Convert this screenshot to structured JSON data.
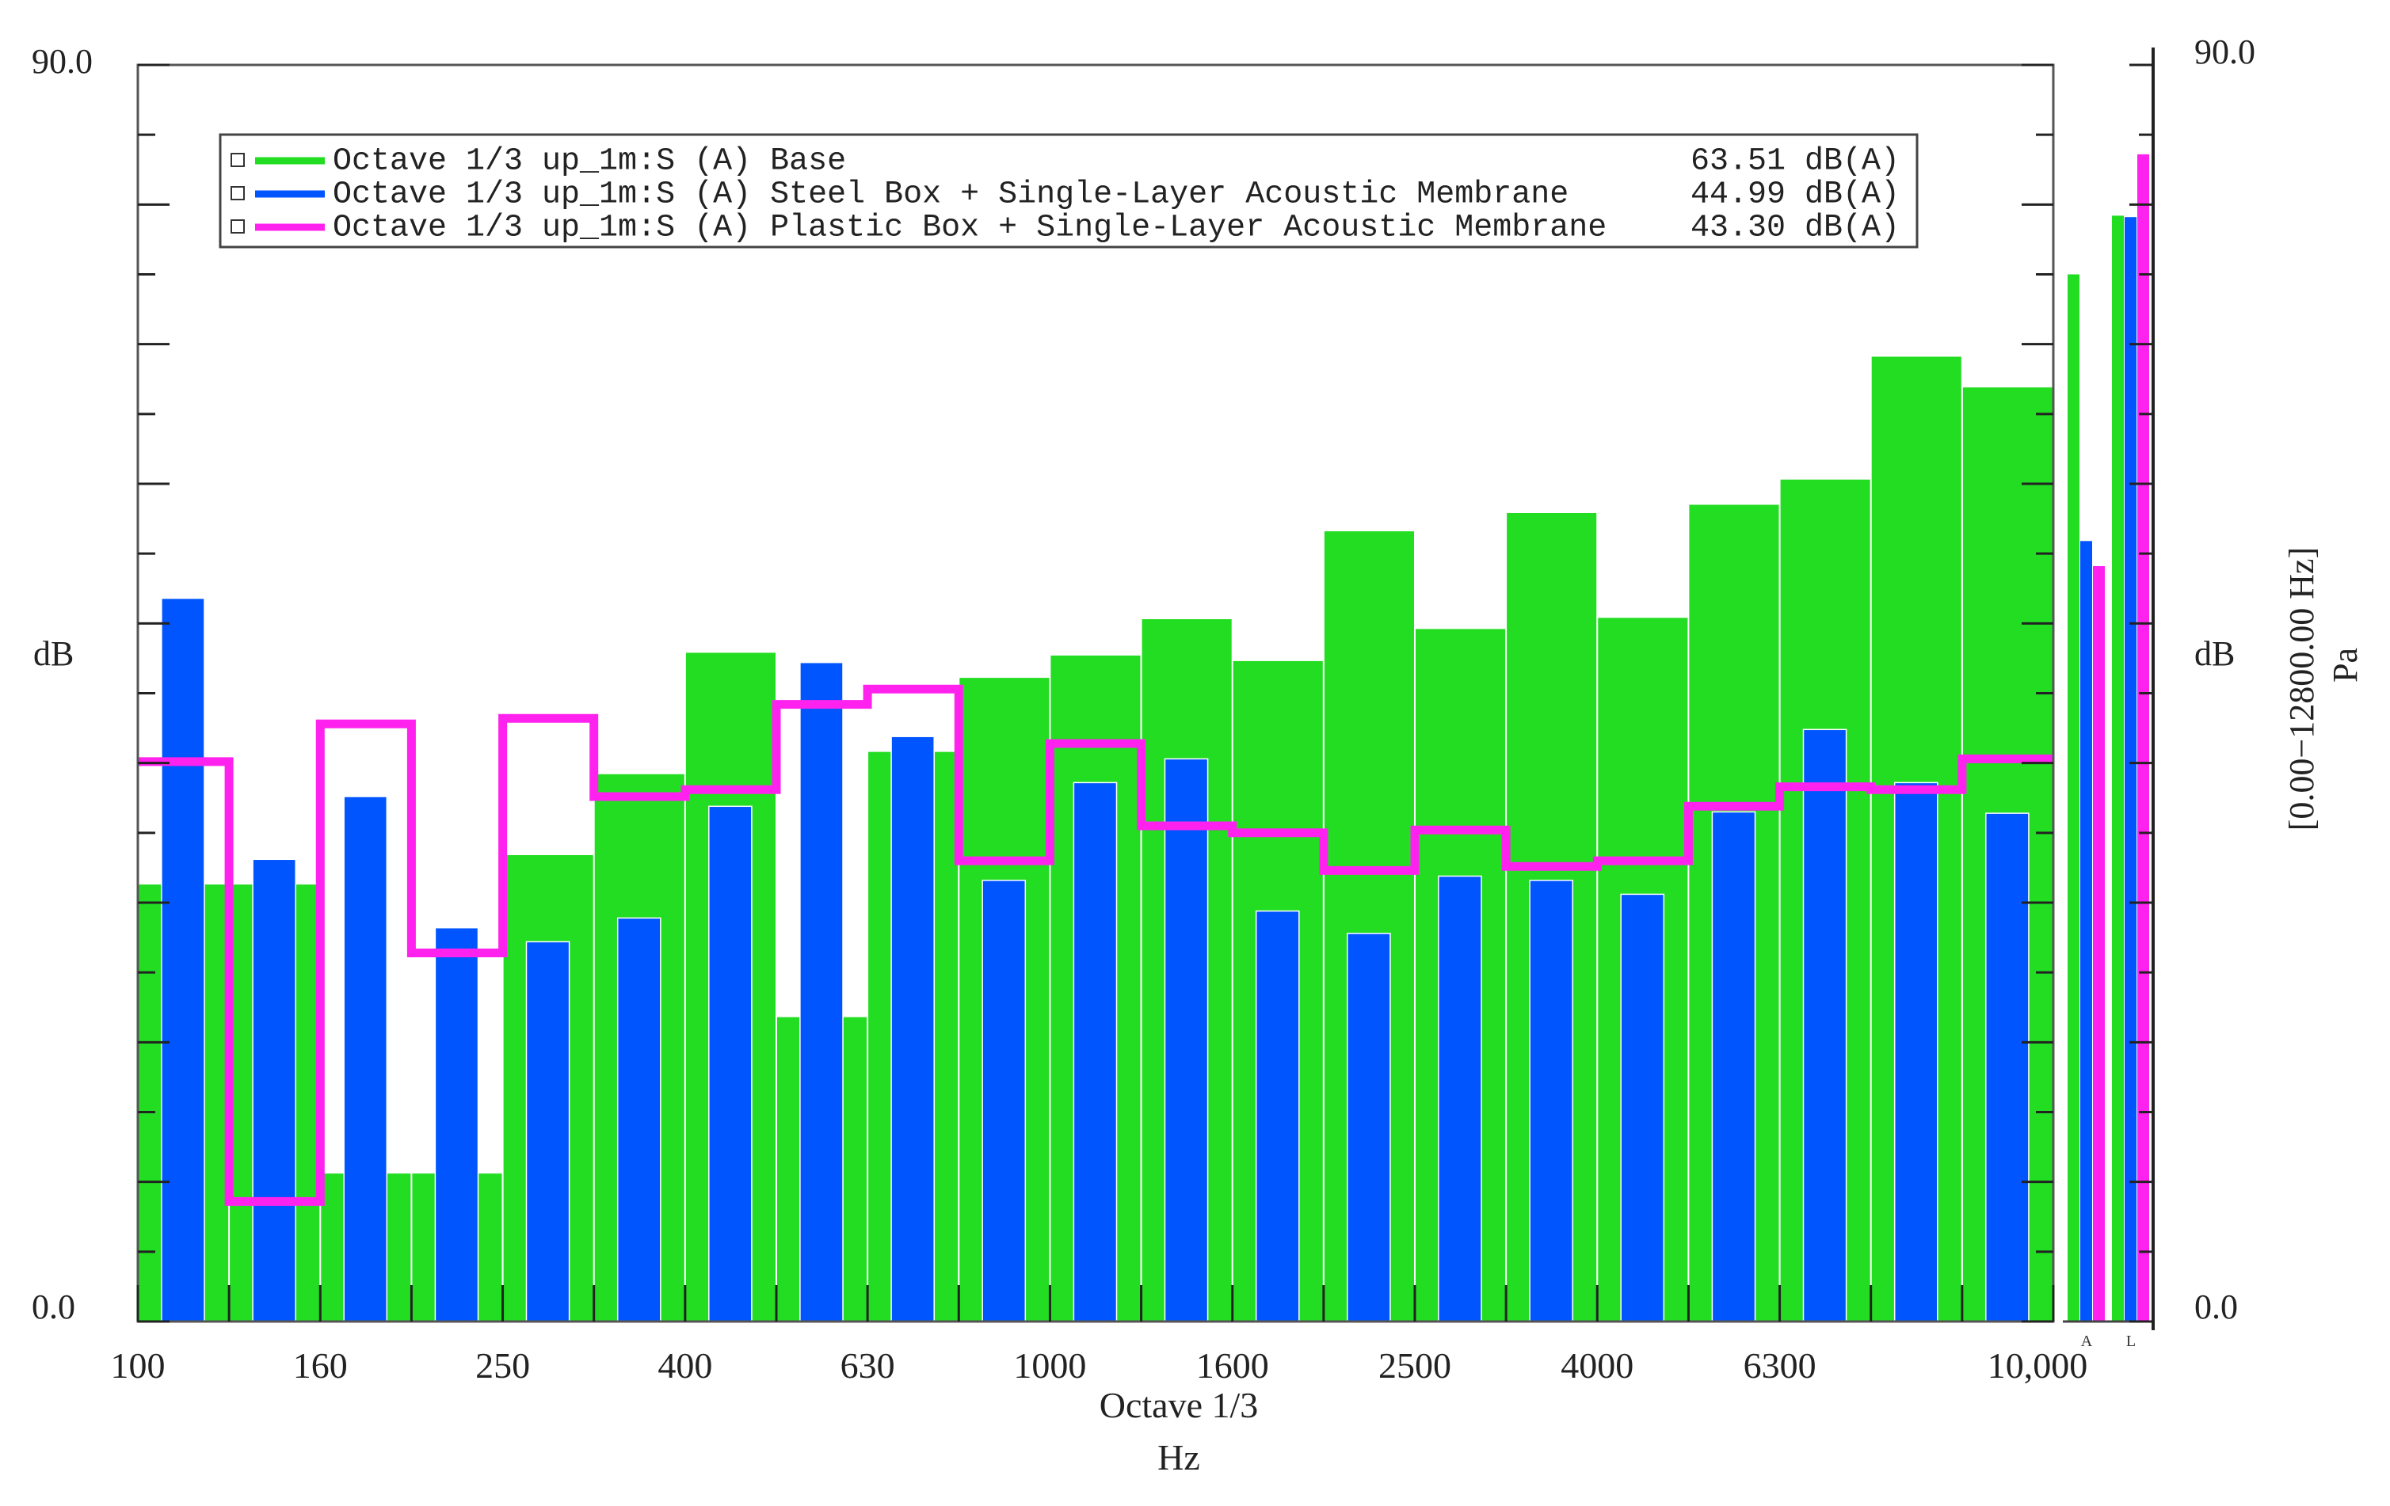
{
  "chart_data": [
    {
      "type": "bar",
      "title": "",
      "xlabel_line1": "Octave 1/3",
      "xlabel_line2": "Hz",
      "ylabel": "dB",
      "ylim": [
        0,
        90
      ],
      "ytick_top_label": "90.0",
      "ytick_bottom_label": "0.0",
      "categories": [
        "100",
        "125",
        "160",
        "200",
        "250",
        "315",
        "400",
        "500",
        "630",
        "800",
        "1000",
        "1250",
        "1600",
        "2000",
        "2500",
        "3150",
        "4000",
        "5000",
        "6300",
        "8000",
        "10,000"
      ],
      "x_tick_labels": [
        "100",
        "160",
        "250",
        "400",
        "630",
        "1000",
        "1600",
        "2500",
        "4000",
        "6300",
        "10,000"
      ],
      "x_tick_positions": [
        "100",
        "160",
        "250",
        "400",
        "630",
        "1000",
        "1600",
        "2500",
        "4000",
        "6300",
        "10,000"
      ],
      "legend_position": "top-left",
      "grid": false,
      "series": [
        {
          "name": "Octave 1/3 up_1m:S (A) Base",
          "overall": "63.51 dB(A)",
          "color": "#22dd22",
          "style": "bar-full",
          "values": [
            31.3,
            31.3,
            10.6,
            10.6,
            33.4,
            39.2,
            47.9,
            21.8,
            40.8,
            46.1,
            47.7,
            50.3,
            47.3,
            56.6,
            49.6,
            57.9,
            50.4,
            58.5,
            60.3,
            69.1,
            66.9
          ]
        },
        {
          "name": "Octave 1/3 up_1m:S (A) Steel Box + Single-Layer Acoustic Membrane",
          "overall": "44.99 dB(A)",
          "color": "#0055ff",
          "style": "bar-narrow",
          "values": [
            51.8,
            33.1,
            37.6,
            28.2,
            27.2,
            28.9,
            36.9,
            47.2,
            41.9,
            31.6,
            38.6,
            40.3,
            29.4,
            27.8,
            31.9,
            31.6,
            30.6,
            36.5,
            42.4,
            38.6,
            36.4
          ]
        },
        {
          "name": "Octave 1/3 up_1m:S (A) Plastic Box + Single-Layer Acoustic Membrane",
          "overall": "43.30 dB(A)",
          "color": "#ff22ee",
          "style": "step",
          "values": [
            40.1,
            8.6,
            42.8,
            26.4,
            43.2,
            37.6,
            38.1,
            44.2,
            45.3,
            33.0,
            41.4,
            35.5,
            35.0,
            32.3,
            35.2,
            32.6,
            33.0,
            36.9,
            38.3,
            38.1,
            40.3
          ]
        }
      ]
    },
    {
      "type": "bar",
      "title": "",
      "ylabel": "dB",
      "ylabel2": "[0.00−12800.00 Hz]",
      "ylabel3": "Pa",
      "ylim": [
        0,
        90
      ],
      "ytick_top_label": "90.0",
      "ytick_bottom_label": "0.0",
      "categories": [
        "A",
        "L"
      ],
      "series": [
        {
          "name": "Base",
          "color": "#22dd22",
          "values": [
            75.0,
            79.2
          ]
        },
        {
          "name": "Steel Box",
          "color": "#0055ff",
          "values": [
            55.9,
            79.1
          ]
        },
        {
          "name": "Plastic Box",
          "color": "#ff22ee",
          "values": [
            54.1,
            83.6
          ]
        }
      ]
    }
  ]
}
